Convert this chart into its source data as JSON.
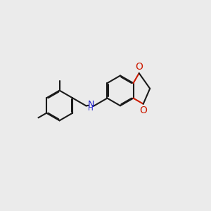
{
  "background_color": "#ebebeb",
  "bond_color": "#1a1a1a",
  "nitrogen_color": "#1a1acc",
  "oxygen_color": "#cc1a00",
  "bond_lw": 1.5,
  "dbo": 0.038,
  "ring_r": 0.72,
  "figsize": [
    3.0,
    3.0
  ],
  "dpi": 100,
  "xlim": [
    -0.5,
    9.5
  ],
  "ylim": [
    2.2,
    7.8
  ]
}
